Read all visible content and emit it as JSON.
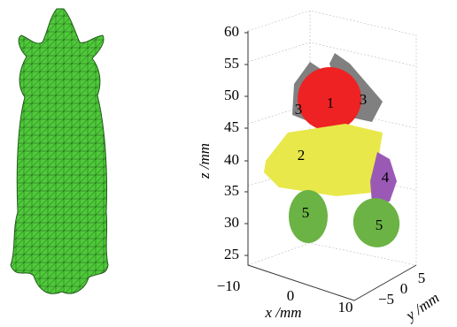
{
  "plot": {
    "z_axis": {
      "label": "z /mm",
      "ticks": [
        "60",
        "55",
        "50",
        "45",
        "40",
        "35",
        "30",
        "25"
      ]
    },
    "x_axis": {
      "label": "x /mm",
      "ticks": [
        "−10",
        "0",
        "10"
      ]
    },
    "y_axis": {
      "label": "y /mm",
      "ticks": [
        "−5",
        "0",
        "5"
      ]
    },
    "regions": [
      {
        "label": "1"
      },
      {
        "label": "2"
      },
      {
        "label": "3"
      },
      {
        "label": "3"
      },
      {
        "label": "4"
      },
      {
        "label": "5"
      },
      {
        "label": "5"
      }
    ]
  }
}
